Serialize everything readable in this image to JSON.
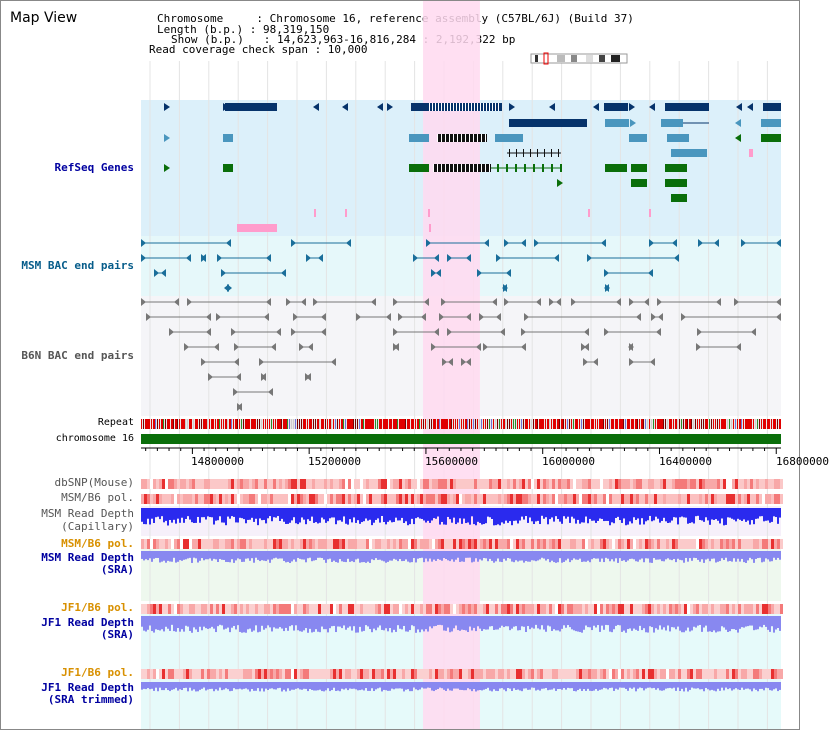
{
  "header": {
    "title": "Map View",
    "info_lines": [
      "Chromosome     : Chromosome 16, reference assembly (C57BL/6J) (Build 37)",
      "Length (b.p.) : 98,319,150",
      "Show (b.p.)   : 14,623,963-16,816,284 : 2,192,322 bp",
      "Read coverage check span : 10,000"
    ]
  },
  "tracks": {
    "refseq": "RefSeq Genes",
    "msm_bac": "MSM BAC end pairs",
    "b6n_bac": "B6N BAC end pairs",
    "repeat": "Repeat",
    "chromosome": "chromosome 16",
    "dbsnp": "dbSNP(Mouse)",
    "msm_b6_pol_1": "MSM/B6 pol.",
    "msm_depth_cap_1": "MSM Read Depth",
    "msm_depth_cap_2": "(Capillary)",
    "msm_b6_pol_2": "MSM/B6 pol.",
    "msm_depth_sra_1": "MSM Read Depth",
    "msm_depth_sra_2": "(SRA)",
    "jf1_b6_pol_1": "JF1/B6 pol.",
    "jf1_depth_sra_1": "JF1 Read Depth",
    "jf1_depth_sra_2": "(SRA)",
    "jf1_b6_pol_2": "JF1/B6 pol.",
    "jf1_depth_trim_1": "JF1 Read Depth",
    "jf1_depth_trim_2": "(SRA trimmed)"
  },
  "axis": {
    "ticks": [
      "14800000",
      "15200000",
      "15600000",
      "16000000",
      "16400000",
      "16800000"
    ],
    "tick_values": [
      14800000,
      15200000,
      15600000,
      16000000,
      16400000,
      16800000
    ],
    "start": 14623963,
    "end": 16816284
  },
  "highlight": {
    "start": 15590000,
    "end": 15785000
  },
  "colors": {
    "refseq_bg": "#dcf0fa",
    "bac_bg": "#e6f8fa",
    "b6n_bg": "#f5f5f8",
    "highlight": "#ffd9f0",
    "gene_navy": "#06336b",
    "gene_steel": "#4a96be",
    "gene_green": "#0a6e0a",
    "gene_pink": "#ff9ccc",
    "msm_label": "#065c8a",
    "b6n_label": "#555555",
    "orange": "#d89000",
    "navy_label": "#0000a0",
    "repeat_red": "#e00000",
    "chrom_green": "#0a6e0a",
    "depth_blue": "#2a2aee",
    "depth_lilac": "#8888f0"
  }
}
